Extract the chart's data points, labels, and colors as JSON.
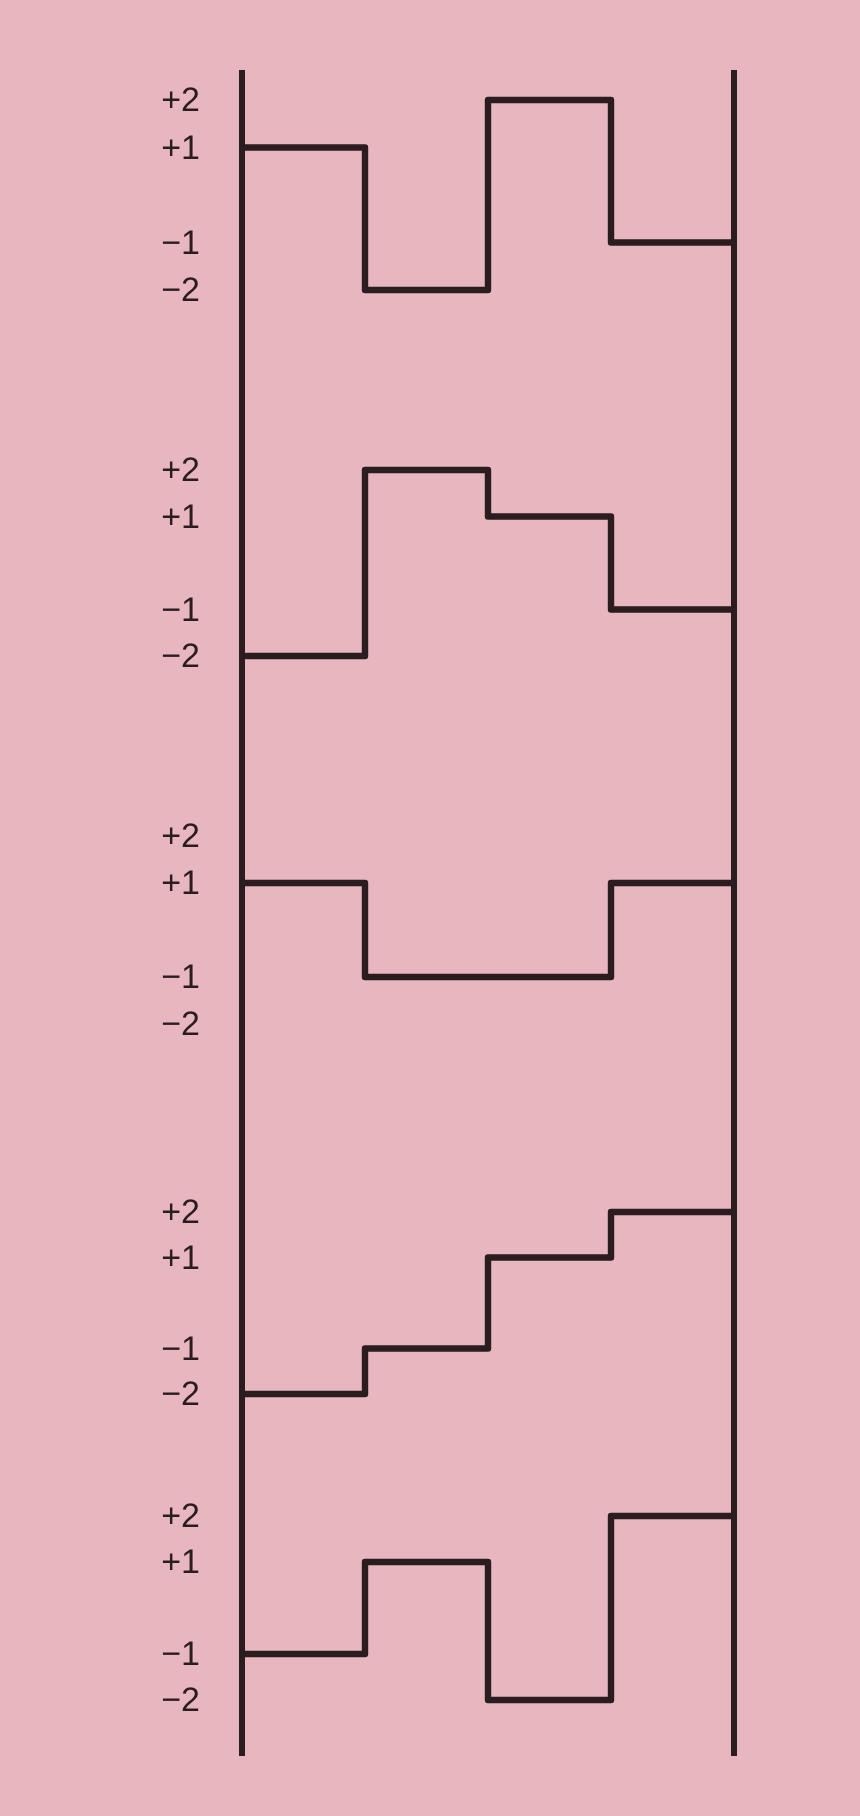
{
  "chart_data": [
    {
      "type": "step",
      "categories": [
        null,
        null,
        null,
        null,
        null
      ],
      "values": [
        1,
        -2,
        2,
        -1,
        -1
      ],
      "ylim": [
        -2,
        2
      ],
      "color": "#2b1d1f",
      "yticks": [
        {
          "value": 2,
          "label": "+2"
        },
        {
          "value": 1,
          "label": "+1"
        },
        {
          "value": -1,
          "label": "−1"
        },
        {
          "value": -2,
          "label": "−2"
        }
      ]
    },
    {
      "type": "step",
      "categories": [
        null,
        null,
        null,
        null,
        null
      ],
      "values": [
        -2,
        2,
        1,
        -1,
        -1
      ],
      "ylim": [
        -2,
        2
      ],
      "color": "#2b1d1f",
      "yticks": [
        {
          "value": 2,
          "label": "+2"
        },
        {
          "value": 1,
          "label": "+1"
        },
        {
          "value": -1,
          "label": "−1"
        },
        {
          "value": -2,
          "label": "−2"
        }
      ]
    },
    {
      "type": "step",
      "categories": [
        null,
        null,
        null,
        null,
        null
      ],
      "values": [
        1,
        -1,
        -1,
        1,
        1
      ],
      "ylim": [
        -2,
        2
      ],
      "color": "#2b1d1f",
      "yticks": [
        {
          "value": 2,
          "label": "+2"
        },
        {
          "value": 1,
          "label": "+1"
        },
        {
          "value": -1,
          "label": "−1"
        },
        {
          "value": -2,
          "label": "−2"
        }
      ]
    },
    {
      "type": "step",
      "categories": [
        null,
        null,
        null,
        null,
        null
      ],
      "values": [
        -2,
        -1,
        1,
        2,
        2
      ],
      "ylim": [
        -2,
        2
      ],
      "color": "#2b1d1f",
      "yticks": [
        {
          "value": 2,
          "label": "+2"
        },
        {
          "value": 1,
          "label": "+1"
        },
        {
          "value": -1,
          "label": "−1"
        },
        {
          "value": -2,
          "label": "−2"
        }
      ]
    },
    {
      "type": "step",
      "categories": [
        null,
        null,
        null,
        null,
        null
      ],
      "values": [
        -1,
        1,
        -2,
        2,
        2
      ],
      "ylim": [
        -2,
        2
      ],
      "color": "#2b1d1f",
      "yticks": [
        {
          "value": 2,
          "label": "+2"
        },
        {
          "value": 1,
          "label": "+1"
        },
        {
          "value": -1,
          "label": "−1"
        },
        {
          "value": -2,
          "label": "−2"
        }
      ]
    }
  ]
}
